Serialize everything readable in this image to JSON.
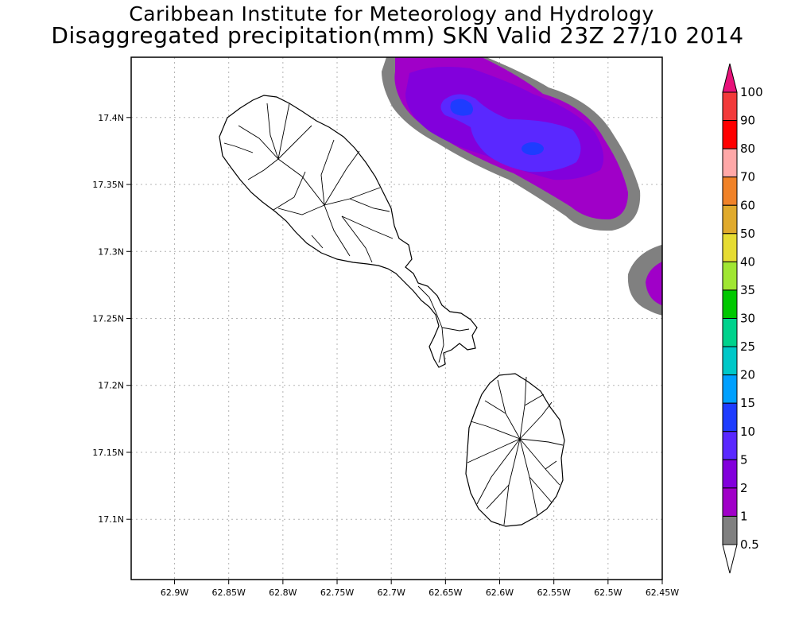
{
  "title_line1": "Caribbean Institute for Meteorology and Hydrology",
  "title_line2": "Disaggregated precipitation(mm) SKN Valid 23Z 27/10 2014",
  "map": {
    "lon_range": [
      62.45,
      62.94
    ],
    "lat_range": [
      17.055,
      17.445
    ],
    "x_ticks": [
      {
        "value": 62.9,
        "label": "62.9W"
      },
      {
        "value": 62.85,
        "label": "62.85W"
      },
      {
        "value": 62.8,
        "label": "62.8W"
      },
      {
        "value": 62.75,
        "label": "62.75W"
      },
      {
        "value": 62.7,
        "label": "62.7W"
      },
      {
        "value": 62.65,
        "label": "62.65W"
      },
      {
        "value": 62.6,
        "label": "62.6W"
      },
      {
        "value": 62.55,
        "label": "62.55W"
      },
      {
        "value": 62.5,
        "label": "62.5W"
      },
      {
        "value": 62.45,
        "label": "62.45W"
      }
    ],
    "y_ticks": [
      {
        "value": 17.4,
        "label": "17.4N"
      },
      {
        "value": 17.35,
        "label": "17.35N"
      },
      {
        "value": 17.3,
        "label": "17.3N"
      },
      {
        "value": 17.25,
        "label": "17.25N"
      },
      {
        "value": 17.2,
        "label": "17.2N"
      },
      {
        "value": 17.15,
        "label": "17.15N"
      },
      {
        "value": 17.1,
        "label": "17.1N"
      }
    ],
    "grid": "dotted",
    "islands": [
      "St. Kitts",
      "Nevis"
    ]
  },
  "colorbar": {
    "levels": [
      {
        "label": "100",
        "color": "#e8127a"
      },
      {
        "label": "90",
        "color": "#f23a3a"
      },
      {
        "label": "80",
        "color": "#ff0000"
      },
      {
        "label": "70",
        "color": "#ffa8a8"
      },
      {
        "label": "60",
        "color": "#f08228"
      },
      {
        "label": "50",
        "color": "#e0aa2c"
      },
      {
        "label": "40",
        "color": "#e6dc32"
      },
      {
        "label": "35",
        "color": "#a0e632"
      },
      {
        "label": "30",
        "color": "#00c800"
      },
      {
        "label": "25",
        "color": "#00d28c"
      },
      {
        "label": "20",
        "color": "#00c8c8"
      },
      {
        "label": "15",
        "color": "#00a0ff"
      },
      {
        "label": "10",
        "color": "#1e3cff"
      },
      {
        "label": "5",
        "color": "#5a28ff"
      },
      {
        "label": "2",
        "color": "#8200dc"
      },
      {
        "label": "1",
        "color": "#a000c8"
      },
      {
        "label": "0.5",
        "color": "#808080"
      }
    ]
  }
}
